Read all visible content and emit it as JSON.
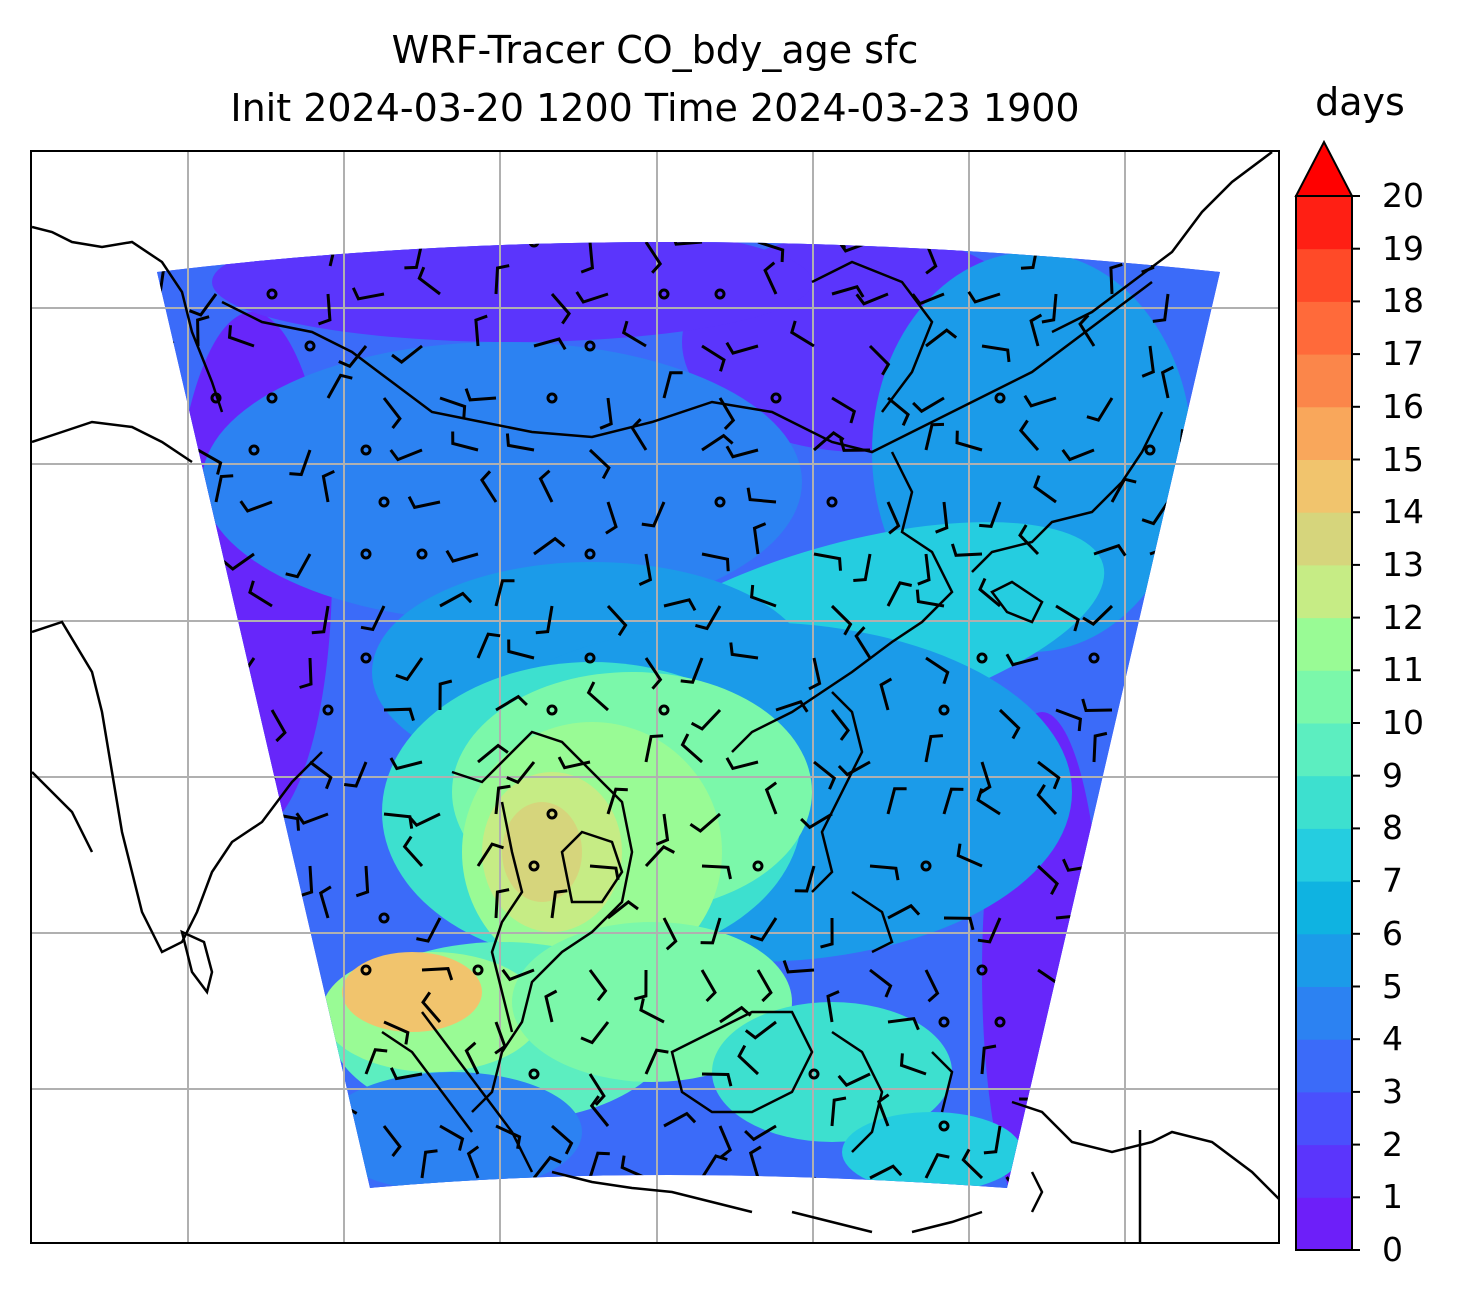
{
  "title": {
    "line1": "WRF-Tracer CO_bdy_age sfc",
    "line2": "Init 2024-03-20 1200 Time 2024-03-23 1900"
  },
  "colorbar": {
    "units": "days",
    "ticks": [
      "0",
      "1",
      "2",
      "3",
      "4",
      "5",
      "6",
      "7",
      "8",
      "9",
      "10",
      "11",
      "12",
      "13",
      "14",
      "15",
      "16",
      "17",
      "18",
      "19",
      "20"
    ],
    "extend": "max",
    "colors": [
      "#6d1ff9",
      "#5b35fc",
      "#4a50fd",
      "#3b6bf9",
      "#2c82f2",
      "#1b9be9",
      "#0fb3e1",
      "#25cde0",
      "#3de0cf",
      "#5ceec0",
      "#7bf8aa",
      "#99fb95",
      "#c6ec85",
      "#d6d57c",
      "#f1c46d",
      "#f9a75b",
      "#fb864a",
      "#ff6a3a",
      "#ff4a28",
      "#ff1f14"
    ],
    "extend_color": "#ff0000"
  },
  "map": {
    "projection": "Lambert conformal",
    "gridlines": true,
    "coastlines": true,
    "wind_barbs": true,
    "field_colors": {
      "outside": "#ffffff",
      "gridline": "#b0b0b0"
    }
  }
}
